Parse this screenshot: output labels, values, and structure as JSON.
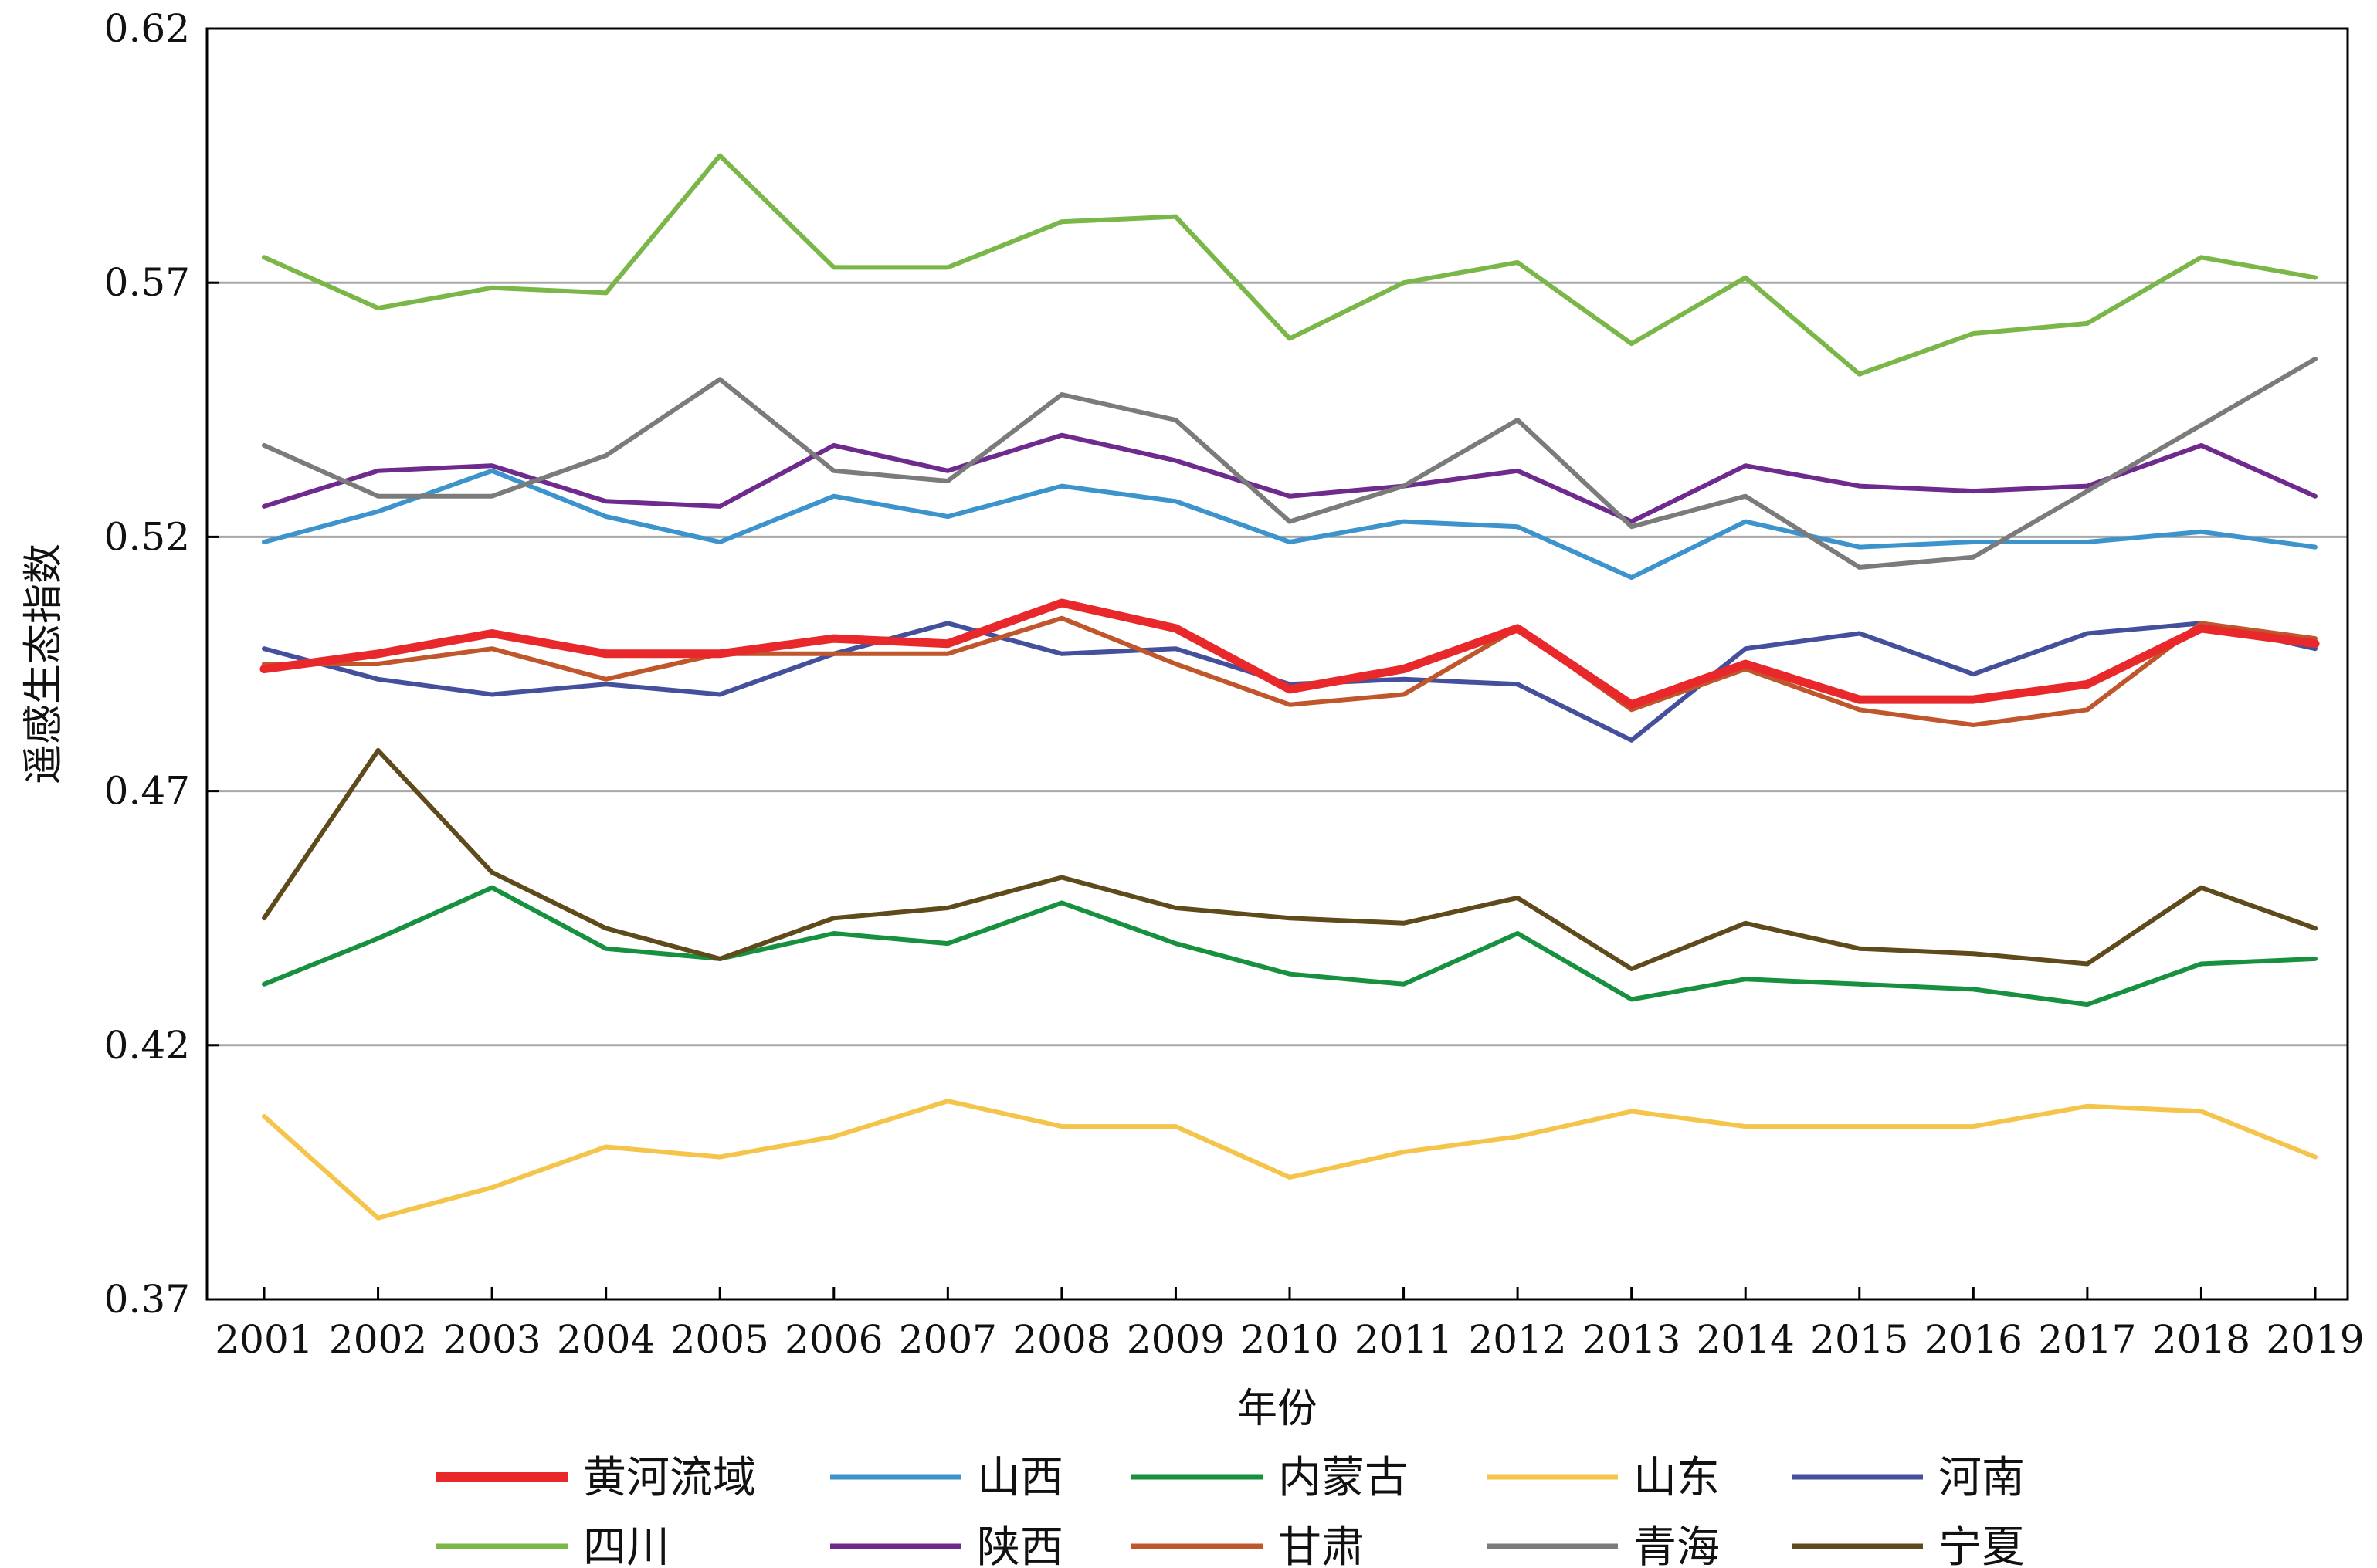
{
  "chart_data": {
    "type": "line",
    "title": "",
    "xlabel": "年份",
    "ylabel": "遥感生态指数",
    "ylim": [
      0.37,
      0.62
    ],
    "yticks": [
      "0.37",
      "0.42",
      "0.47",
      "0.52",
      "0.57",
      "0.62"
    ],
    "grid": "horizontal",
    "legend_position": "bottom",
    "categories": [
      "2001",
      "2002",
      "2003",
      "2004",
      "2005",
      "2006",
      "2007",
      "2008",
      "2009",
      "2010",
      "2011",
      "2012",
      "2013",
      "2014",
      "2015",
      "2016",
      "2017",
      "2018",
      "2019"
    ],
    "series": [
      {
        "name": "黄河流域",
        "color": "#e8282b",
        "emphasis": true,
        "values": [
          0.494,
          0.497,
          0.501,
          0.497,
          0.497,
          0.5,
          0.499,
          0.507,
          0.502,
          0.49,
          0.494,
          0.502,
          0.487,
          0.495,
          0.488,
          0.488,
          0.491,
          0.502,
          0.499
        ]
      },
      {
        "name": "山西",
        "color": "#3d94cd",
        "values": [
          0.519,
          0.525,
          0.533,
          0.524,
          0.519,
          0.528,
          0.524,
          0.53,
          0.527,
          0.519,
          0.523,
          0.522,
          0.512,
          0.523,
          0.518,
          0.519,
          0.519,
          0.521,
          0.518
        ]
      },
      {
        "name": "内蒙古",
        "color": "#17913f",
        "values": [
          0.432,
          0.441,
          0.451,
          0.439,
          0.437,
          0.442,
          0.44,
          0.448,
          0.44,
          0.434,
          0.432,
          0.442,
          0.429,
          0.433,
          0.432,
          0.431,
          0.428,
          0.436,
          0.437
        ]
      },
      {
        "name": "山东",
        "color": "#f5c44a",
        "values": [
          0.406,
          0.386,
          0.392,
          0.4,
          0.398,
          0.402,
          0.409,
          0.404,
          0.404,
          0.394,
          0.399,
          0.402,
          0.407,
          0.404,
          0.404,
          0.404,
          0.408,
          0.407,
          0.398
        ]
      },
      {
        "name": "河南",
        "color": "#45509d",
        "values": [
          0.498,
          0.492,
          0.489,
          0.491,
          0.489,
          0.497,
          0.503,
          0.497,
          0.498,
          0.491,
          0.492,
          0.491,
          0.48,
          0.498,
          0.501,
          0.493,
          0.501,
          0.503,
          0.498
        ]
      },
      {
        "name": "四川",
        "color": "#7ab648",
        "values": [
          0.575,
          0.565,
          0.569,
          0.568,
          0.595,
          0.573,
          0.573,
          0.582,
          0.583,
          0.559,
          0.57,
          0.574,
          0.558,
          0.571,
          0.552,
          0.56,
          0.562,
          0.575,
          0.571
        ]
      },
      {
        "name": "陕西",
        "color": "#6e2a8d",
        "values": [
          0.526,
          0.533,
          0.534,
          0.527,
          0.526,
          0.538,
          0.533,
          0.54,
          0.535,
          0.528,
          0.53,
          0.533,
          0.523,
          0.534,
          0.53,
          0.529,
          0.53,
          0.538,
          0.528
        ]
      },
      {
        "name": "甘肃",
        "color": "#c0562b",
        "values": [
          0.495,
          0.495,
          0.498,
          0.492,
          0.497,
          0.497,
          0.497,
          0.504,
          0.495,
          0.487,
          0.489,
          0.502,
          0.486,
          0.494,
          0.486,
          0.483,
          0.486,
          0.503,
          0.5
        ]
      },
      {
        "name": "青海",
        "color": "#7b7b7b",
        "values": [
          0.538,
          0.528,
          0.528,
          0.536,
          0.551,
          0.533,
          0.531,
          0.548,
          0.543,
          0.523,
          0.53,
          0.543,
          0.522,
          0.528,
          0.514,
          0.516,
          0.529,
          0.542,
          0.555
        ]
      },
      {
        "name": "宁夏",
        "color": "#5f4a1c",
        "values": [
          0.445,
          0.478,
          0.454,
          0.443,
          0.437,
          0.445,
          0.447,
          0.453,
          0.447,
          0.445,
          0.444,
          0.449,
          0.435,
          0.444,
          0.439,
          0.438,
          0.436,
          0.451,
          0.443
        ]
      }
    ]
  }
}
